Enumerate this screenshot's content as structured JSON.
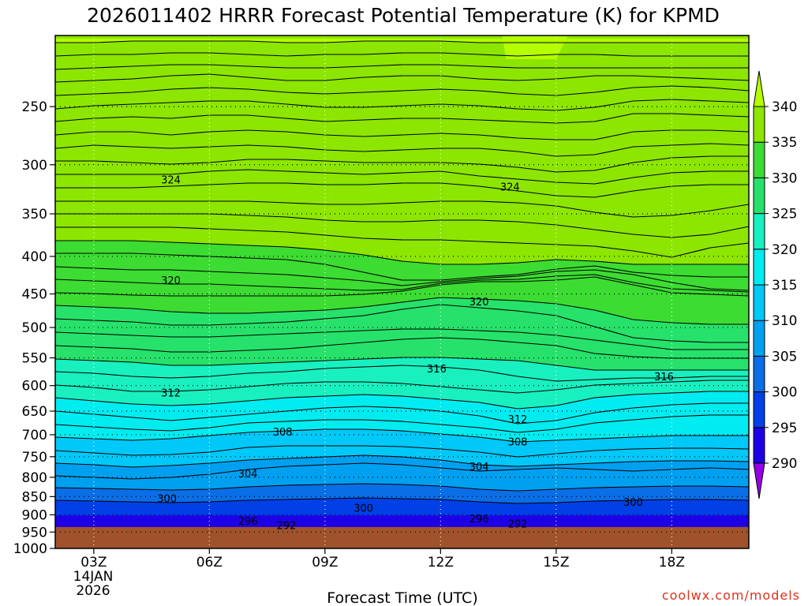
{
  "chart_data": {
    "type": "heatmap",
    "title": "2026011402 HRRR Forecast Potential Temperature (K) for KPMD",
    "xlabel": "Forecast Time (UTC)",
    "ylabel": "",
    "credit": "coolwx.com/models",
    "y_axis": {
      "scale": "log",
      "ylim": [
        1000,
        200
      ],
      "ticks": [
        "250",
        "300",
        "350",
        "400",
        "450",
        "500",
        "550",
        "600",
        "650",
        "700",
        "750",
        "800",
        "850",
        "900",
        "950",
        "1000"
      ]
    },
    "x_axis": {
      "hours": [
        2,
        20
      ],
      "ticks": [
        {
          "label": "03Z",
          "hour": 3
        },
        {
          "label": "06Z",
          "hour": 6
        },
        {
          "label": "09Z",
          "hour": 9
        },
        {
          "label": "12Z",
          "hour": 12
        },
        {
          "label": "15Z",
          "hour": 15
        },
        {
          "label": "18Z",
          "hour": 18
        }
      ],
      "date_line1": "14JAN",
      "date_line2": "2026"
    },
    "grid": true,
    "ground_pressure": 935,
    "colorbar": {
      "levels": [
        "290",
        "295",
        "300",
        "305",
        "310",
        "315",
        "320",
        "325",
        "330",
        "335",
        "340"
      ],
      "colors": [
        "#9600e6",
        "#1e00e6",
        "#0040e6",
        "#0a6ee6",
        "#00a0f0",
        "#00c8f8",
        "#00ecf0",
        "#18f0c0",
        "#26e26a",
        "#3cdc32",
        "#8ce600",
        "#b4ff00"
      ]
    },
    "contour_labels": [
      {
        "text": "324",
        "hour": 5.0,
        "p": 315
      },
      {
        "text": "324",
        "hour": 13.8,
        "p": 322
      },
      {
        "text": "320",
        "hour": 5.0,
        "p": 432
      },
      {
        "text": "320",
        "hour": 13.0,
        "p": 462
      },
      {
        "text": "316",
        "hour": 11.9,
        "p": 570
      },
      {
        "text": "316",
        "hour": 17.8,
        "p": 584
      },
      {
        "text": "312",
        "hour": 5.0,
        "p": 615
      },
      {
        "text": "312",
        "hour": 14.0,
        "p": 668
      },
      {
        "text": "308",
        "hour": 7.9,
        "p": 695
      },
      {
        "text": "308",
        "hour": 14.0,
        "p": 717
      },
      {
        "text": "304",
        "hour": 7.0,
        "p": 792
      },
      {
        "text": "304",
        "hour": 13.0,
        "p": 775
      },
      {
        "text": "300",
        "hour": 4.9,
        "p": 857
      },
      {
        "text": "300",
        "hour": 10.0,
        "p": 883
      },
      {
        "text": "300",
        "hour": 17.0,
        "p": 866
      },
      {
        "text": "296",
        "hour": 7.0,
        "p": 919
      },
      {
        "text": "296",
        "hour": 13.0,
        "p": 912
      },
      {
        "text": "292",
        "hour": 8.0,
        "p": 932
      },
      {
        "text": "292",
        "hour": 14.0,
        "p": 927
      }
    ]
  }
}
